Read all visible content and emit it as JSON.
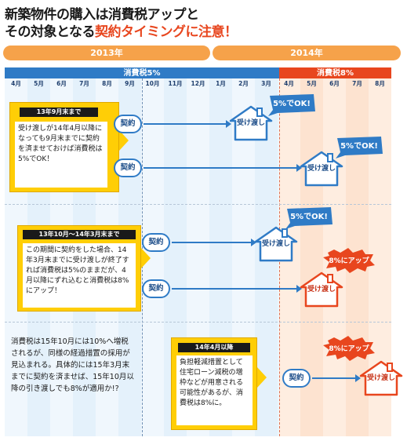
{
  "headline": {
    "line1": "新築物件の購入は消費税アップと",
    "line2_prefix": "その対象となる",
    "line2_highlight": "契約タイミング",
    "line2_suffix": "に注意！"
  },
  "years": {
    "y2013": "2013年",
    "y2014": "2014年"
  },
  "tax_periods": {
    "rate5": "消費税5%",
    "rate8": "消費税8%"
  },
  "months": [
    "4月",
    "5月",
    "6月",
    "7月",
    "8月",
    "9月",
    "10月",
    "11月",
    "12月",
    "1月",
    "2月",
    "3月",
    "4月",
    "5月",
    "6月",
    "7月",
    "8月"
  ],
  "section1": {
    "title": "13年9月末まで",
    "text": "受け渡しが14年4月以降になっても9月末までに契約を済ませておけば消費税は5%でOK！",
    "contract_label": "契約",
    "delivery_label": "受け渡し",
    "ok_badge": "5%でOK!"
  },
  "section2": {
    "title": "13年10月～14年3月末まで",
    "text": "この期間に契約をした場合、14年3月末までに受け渡しが終了すれば消費税は5%のままだが、4月以降にずれ込むと消費税は8%にアップ！",
    "contract_label": "契約",
    "delivery_label": "受け渡し",
    "ok_badge": "5%でOK!",
    "up_badge": "8%にアップ"
  },
  "section3": {
    "side_text": "消費税は15年10月には10%へ増税されるが、同様の経過措置の採用が見込まれる。具体的には15年3月末までに契約を済ませば、15年10月以降の引き渡しでも8%が適用か!?",
    "title": "14年4月以降",
    "text": "負担軽減措置として住宅ローン減税の増枠などが用意される可能性があるが、消費税は8%に。",
    "contract_label": "契約",
    "delivery_label": "受け渡し",
    "up_badge": "8%にアップ"
  },
  "colors": {
    "blue": "#2f7bc6",
    "orange": "#f6a24a",
    "red": "#e8461e",
    "yellow": "#ffce06"
  }
}
